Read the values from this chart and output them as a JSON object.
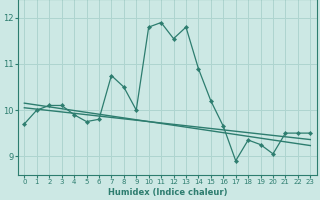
{
  "title": "",
  "xlabel": "Humidex (Indice chaleur)",
  "bg_color": "#cce8e4",
  "line_color": "#2d7d6f",
  "grid_color": "#aed4cf",
  "x_data": [
    0,
    1,
    2,
    3,
    4,
    5,
    6,
    7,
    8,
    9,
    10,
    11,
    12,
    13,
    14,
    15,
    16,
    17,
    18,
    19,
    20,
    21,
    22,
    23
  ],
  "y_main": [
    9.7,
    10.0,
    10.1,
    10.1,
    9.9,
    9.75,
    9.8,
    10.75,
    10.5,
    10.0,
    11.8,
    11.9,
    11.55,
    11.8,
    10.9,
    10.2,
    9.65,
    8.9,
    9.35,
    9.25,
    9.05,
    9.5,
    9.5,
    9.5
  ],
  "y_trend1": [
    10.05,
    10.02,
    9.99,
    9.96,
    9.93,
    9.9,
    9.87,
    9.84,
    9.81,
    9.78,
    9.75,
    9.72,
    9.69,
    9.66,
    9.63,
    9.6,
    9.57,
    9.54,
    9.51,
    9.48,
    9.45,
    9.42,
    9.39,
    9.36
  ],
  "y_trend2": [
    10.15,
    10.11,
    10.07,
    10.03,
    9.99,
    9.95,
    9.91,
    9.87,
    9.83,
    9.79,
    9.75,
    9.71,
    9.67,
    9.63,
    9.59,
    9.55,
    9.51,
    9.47,
    9.43,
    9.39,
    9.35,
    9.31,
    9.27,
    9.23
  ],
  "ylim": [
    8.6,
    12.4
  ],
  "xlim": [
    -0.5,
    23.5
  ],
  "yticks": [
    9,
    10,
    11,
    12
  ],
  "xticks": [
    0,
    1,
    2,
    3,
    4,
    5,
    6,
    7,
    8,
    9,
    10,
    11,
    12,
    13,
    14,
    15,
    16,
    17,
    18,
    19,
    20,
    21,
    22,
    23
  ]
}
